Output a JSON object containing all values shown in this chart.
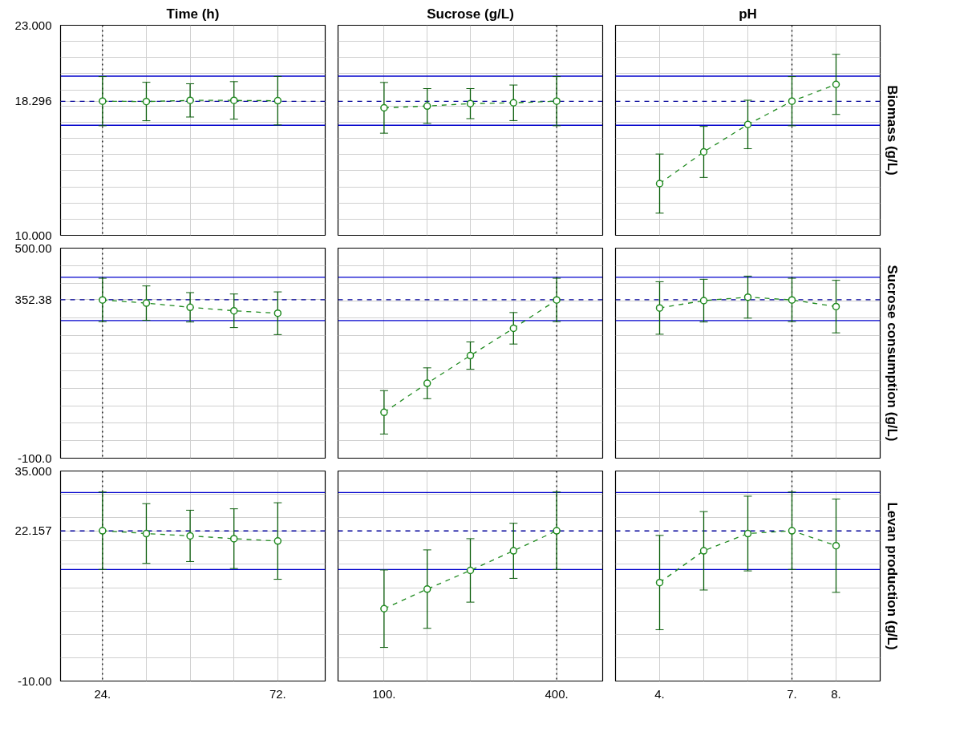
{
  "chart_data": [
    {
      "type": "line",
      "title": "Time (h)",
      "x": [
        24,
        36,
        48,
        60,
        72
      ],
      "xlim": [
        12.5,
        85
      ],
      "xticks": [
        {
          "value": 24,
          "label": null
        },
        {
          "value": 36,
          "label": null
        },
        {
          "value": 48,
          "label": null
        },
        {
          "value": 60,
          "label": null
        },
        {
          "value": 72,
          "label": null
        }
      ],
      "ylim": [
        10,
        23
      ],
      "yticks": [
        {
          "value": 10,
          "label": "10.000"
        },
        {
          "value": 11,
          "label": null
        },
        {
          "value": 12,
          "label": null
        },
        {
          "value": 13,
          "label": null
        },
        {
          "value": 14,
          "label": null
        },
        {
          "value": 15,
          "label": null
        },
        {
          "value": 16,
          "label": null
        },
        {
          "value": 17,
          "label": null
        },
        {
          "value": 18,
          "label": null
        },
        {
          "value": 18.296,
          "label": "18.296"
        },
        {
          "value": 19,
          "label": null
        },
        {
          "value": 20,
          "label": null
        },
        {
          "value": 21,
          "label": null
        },
        {
          "value": 22,
          "label": null
        },
        {
          "value": 23,
          "label": "23.000"
        }
      ],
      "tick_labels": "y",
      "grid": true,
      "marker": "circle",
      "line_style": "dashed",
      "series": [
        {
          "color": "#1f8a1f",
          "values": [
            18.3,
            18.28,
            18.35,
            18.35,
            18.33
          ],
          "errors": [
            1.52,
            1.19,
            1.03,
            1.16,
            1.5
          ]
        }
      ],
      "ref_lines": [
        {
          "axis": "y",
          "value": 19.85,
          "color": "#0000cc",
          "line_style": "solid"
        },
        {
          "axis": "y",
          "value": 18.296,
          "color": "#000099",
          "line_style": "dashed"
        },
        {
          "axis": "y",
          "value": 16.81,
          "color": "#0000cc",
          "line_style": "solid"
        },
        {
          "axis": "x",
          "value": 24,
          "color": "#000000",
          "line_style": "dotted"
        }
      ]
    },
    {
      "type": "line",
      "title": "Sucrose (g/L)",
      "x": [
        100,
        175,
        250,
        325,
        400
      ],
      "xlim": [
        20,
        480
      ],
      "xticks": [
        {
          "value": 100,
          "label": null
        },
        {
          "value": 175,
          "label": null
        },
        {
          "value": 250,
          "label": null
        },
        {
          "value": 325,
          "label": null
        },
        {
          "value": 400,
          "label": null
        }
      ],
      "ylim": [
        10,
        23
      ],
      "yticks": [
        {
          "value": 10,
          "label": null
        },
        {
          "value": 11,
          "label": null
        },
        {
          "value": 12,
          "label": null
        },
        {
          "value": 13,
          "label": null
        },
        {
          "value": 14,
          "label": null
        },
        {
          "value": 15,
          "label": null
        },
        {
          "value": 16,
          "label": null
        },
        {
          "value": 17,
          "label": null
        },
        {
          "value": 18,
          "label": null
        },
        {
          "value": 19,
          "label": null
        },
        {
          "value": 20,
          "label": null
        },
        {
          "value": 21,
          "label": null
        },
        {
          "value": 22,
          "label": null
        },
        {
          "value": 23,
          "label": null
        }
      ],
      "tick_labels": false,
      "grid": true,
      "marker": "circle",
      "line_style": "dashed",
      "series": [
        {
          "color": "#1f8a1f",
          "values": [
            17.89,
            18.0,
            18.15,
            18.2,
            18.3
          ],
          "errors": [
            1.57,
            1.08,
            0.93,
            1.1,
            1.52
          ]
        }
      ],
      "ref_lines": [
        {
          "axis": "y",
          "value": 19.85,
          "color": "#0000cc",
          "line_style": "solid"
        },
        {
          "axis": "y",
          "value": 18.296,
          "color": "#000099",
          "line_style": "dashed"
        },
        {
          "axis": "y",
          "value": 16.81,
          "color": "#0000cc",
          "line_style": "solid"
        },
        {
          "axis": "x",
          "value": 400,
          "color": "#000000",
          "line_style": "dotted"
        }
      ]
    },
    {
      "type": "line",
      "title": "pH",
      "ylabel": "Biomass (g/L)",
      "x": [
        4,
        5,
        6,
        7,
        8
      ],
      "xlim": [
        3,
        9
      ],
      "xticks": [
        {
          "value": 4,
          "label": null
        },
        {
          "value": 5,
          "label": null
        },
        {
          "value": 6,
          "label": null
        },
        {
          "value": 7,
          "label": null
        },
        {
          "value": 8,
          "label": null
        }
      ],
      "ylim": [
        10,
        23
      ],
      "yticks": [
        {
          "value": 10,
          "label": null
        },
        {
          "value": 11,
          "label": null
        },
        {
          "value": 12,
          "label": null
        },
        {
          "value": 13,
          "label": null
        },
        {
          "value": 14,
          "label": null
        },
        {
          "value": 15,
          "label": null
        },
        {
          "value": 16,
          "label": null
        },
        {
          "value": 17,
          "label": null
        },
        {
          "value": 18,
          "label": null
        },
        {
          "value": 19,
          "label": null
        },
        {
          "value": 20,
          "label": null
        },
        {
          "value": 21,
          "label": null
        },
        {
          "value": 22,
          "label": null
        },
        {
          "value": 23,
          "label": null
        }
      ],
      "tick_labels": false,
      "grid": true,
      "marker": "circle",
      "line_style": "dashed",
      "series": [
        {
          "color": "#1f8a1f",
          "values": [
            13.2,
            15.16,
            16.86,
            18.3,
            19.34
          ],
          "errors": [
            1.83,
            1.58,
            1.5,
            1.52,
            1.86
          ]
        }
      ],
      "ref_lines": [
        {
          "axis": "y",
          "value": 19.85,
          "color": "#0000cc",
          "line_style": "solid"
        },
        {
          "axis": "y",
          "value": 18.296,
          "color": "#000099",
          "line_style": "dashed"
        },
        {
          "axis": "y",
          "value": 16.81,
          "color": "#0000cc",
          "line_style": "solid"
        },
        {
          "axis": "x",
          "value": 7,
          "color": "#000000",
          "line_style": "dotted"
        }
      ]
    },
    {
      "type": "line",
      "x": [
        24,
        36,
        48,
        60,
        72
      ],
      "xlim": [
        12.5,
        85
      ],
      "xticks": [
        {
          "value": 24,
          "label": null
        },
        {
          "value": 36,
          "label": null
        },
        {
          "value": 48,
          "label": null
        },
        {
          "value": 60,
          "label": null
        },
        {
          "value": 72,
          "label": null
        }
      ],
      "ylim": [
        -100,
        500
      ],
      "yticks": [
        {
          "value": -100,
          "label": "-100.0"
        },
        {
          "value": -50,
          "label": null
        },
        {
          "value": 0,
          "label": null
        },
        {
          "value": 50,
          "label": null
        },
        {
          "value": 100,
          "label": null
        },
        {
          "value": 150,
          "label": null
        },
        {
          "value": 200,
          "label": null
        },
        {
          "value": 250,
          "label": null
        },
        {
          "value": 300,
          "label": null
        },
        {
          "value": 352.38,
          "label": "352.38"
        },
        {
          "value": 400,
          "label": null
        },
        {
          "value": 450,
          "label": null
        },
        {
          "value": 500,
          "label": "500.00"
        }
      ],
      "tick_labels": "y",
      "grid": true,
      "marker": "circle",
      "line_style": "dashed",
      "series": [
        {
          "color": "#1f8a1f",
          "values": [
            352,
            343,
            331,
            321,
            314
          ],
          "errors": [
            62,
            49,
            42,
            48,
            61
          ]
        }
      ],
      "ref_lines": [
        {
          "axis": "y",
          "value": 416.7,
          "color": "#0000cc",
          "line_style": "solid"
        },
        {
          "axis": "y",
          "value": 352.38,
          "color": "#000099",
          "line_style": "dashed"
        },
        {
          "axis": "y",
          "value": 292.9,
          "color": "#0000cc",
          "line_style": "solid"
        },
        {
          "axis": "x",
          "value": 24,
          "color": "#000000",
          "line_style": "dotted"
        }
      ]
    },
    {
      "type": "line",
      "x": [
        100,
        175,
        250,
        325,
        400
      ],
      "xlim": [
        20,
        480
      ],
      "xticks": [
        {
          "value": 100,
          "label": null
        },
        {
          "value": 175,
          "label": null
        },
        {
          "value": 250,
          "label": null
        },
        {
          "value": 325,
          "label": null
        },
        {
          "value": 400,
          "label": null
        }
      ],
      "ylim": [
        -100,
        500
      ],
      "yticks": [
        {
          "value": -100,
          "label": null
        },
        {
          "value": -50,
          "label": null
        },
        {
          "value": 0,
          "label": null
        },
        {
          "value": 50,
          "label": null
        },
        {
          "value": 100,
          "label": null
        },
        {
          "value": 150,
          "label": null
        },
        {
          "value": 200,
          "label": null
        },
        {
          "value": 250,
          "label": null
        },
        {
          "value": 300,
          "label": null
        },
        {
          "value": 350,
          "label": null
        },
        {
          "value": 400,
          "label": null
        },
        {
          "value": 450,
          "label": null
        },
        {
          "value": 500,
          "label": null
        }
      ],
      "tick_labels": false,
      "grid": true,
      "marker": "circle",
      "line_style": "dashed",
      "series": [
        {
          "color": "#1f8a1f",
          "values": [
            31,
            114,
            193,
            271,
            352
          ],
          "errors": [
            62,
            44,
            39,
            45,
            62
          ]
        }
      ],
      "ref_lines": [
        {
          "axis": "y",
          "value": 416.7,
          "color": "#0000cc",
          "line_style": "solid"
        },
        {
          "axis": "y",
          "value": 352.38,
          "color": "#000099",
          "line_style": "dashed"
        },
        {
          "axis": "y",
          "value": 292.9,
          "color": "#0000cc",
          "line_style": "solid"
        },
        {
          "axis": "x",
          "value": 400,
          "color": "#000000",
          "line_style": "dotted"
        }
      ]
    },
    {
      "type": "line",
      "ylabel": "Sucrose consumption (g/L)",
      "x": [
        4,
        5,
        6,
        7,
        8
      ],
      "xlim": [
        3,
        9
      ],
      "xticks": [
        {
          "value": 4,
          "label": null
        },
        {
          "value": 5,
          "label": null
        },
        {
          "value": 6,
          "label": null
        },
        {
          "value": 7,
          "label": null
        },
        {
          "value": 8,
          "label": null
        }
      ],
      "ylim": [
        -100,
        500
      ],
      "yticks": [
        {
          "value": -100,
          "label": null
        },
        {
          "value": -50,
          "label": null
        },
        {
          "value": 0,
          "label": null
        },
        {
          "value": 50,
          "label": null
        },
        {
          "value": 100,
          "label": null
        },
        {
          "value": 150,
          "label": null
        },
        {
          "value": 200,
          "label": null
        },
        {
          "value": 250,
          "label": null
        },
        {
          "value": 300,
          "label": null
        },
        {
          "value": 350,
          "label": null
        },
        {
          "value": 400,
          "label": null
        },
        {
          "value": 450,
          "label": null
        },
        {
          "value": 500,
          "label": null
        }
      ],
      "tick_labels": false,
      "grid": true,
      "marker": "circle",
      "line_style": "dashed",
      "series": [
        {
          "color": "#1f8a1f",
          "values": [
            329,
            350,
            360,
            352,
            333
          ],
          "errors": [
            75,
            61,
            60,
            62,
            75
          ]
        }
      ],
      "ref_lines": [
        {
          "axis": "y",
          "value": 416.7,
          "color": "#0000cc",
          "line_style": "solid"
        },
        {
          "axis": "y",
          "value": 352.38,
          "color": "#000099",
          "line_style": "dashed"
        },
        {
          "axis": "y",
          "value": 292.9,
          "color": "#0000cc",
          "line_style": "solid"
        },
        {
          "axis": "x",
          "value": 7,
          "color": "#000000",
          "line_style": "dotted"
        }
      ]
    },
    {
      "type": "line",
      "x": [
        24,
        36,
        48,
        60,
        72
      ],
      "xlim": [
        12.5,
        85
      ],
      "xticks": [
        {
          "value": 24,
          "label": "24."
        },
        {
          "value": 36,
          "label": null
        },
        {
          "value": 48,
          "label": null
        },
        {
          "value": 60,
          "label": null
        },
        {
          "value": 72,
          "label": "72."
        }
      ],
      "ylim": [
        -10,
        35
      ],
      "yticks": [
        {
          "value": -10,
          "label": "-10.00"
        },
        {
          "value": -5,
          "label": null
        },
        {
          "value": 0,
          "label": null
        },
        {
          "value": 5,
          "label": null
        },
        {
          "value": 10,
          "label": null
        },
        {
          "value": 15,
          "label": null
        },
        {
          "value": 20,
          "label": null
        },
        {
          "value": 22.157,
          "label": "22.157"
        },
        {
          "value": 25,
          "label": null
        },
        {
          "value": 30,
          "label": null
        },
        {
          "value": 35,
          "label": "35.000"
        }
      ],
      "grid": true,
      "marker": "circle",
      "line_style": "dashed",
      "series": [
        {
          "color": "#1f8a1f",
          "values": [
            22.2,
            21.6,
            21.1,
            20.5,
            20.0
          ],
          "errors": [
            8.3,
            6.4,
            5.5,
            6.4,
            8.2
          ]
        }
      ],
      "ref_lines": [
        {
          "axis": "y",
          "value": 30.4,
          "color": "#0000cc",
          "line_style": "solid"
        },
        {
          "axis": "y",
          "value": 22.157,
          "color": "#000099",
          "line_style": "dashed"
        },
        {
          "axis": "y",
          "value": 13.9,
          "color": "#0000cc",
          "line_style": "solid"
        },
        {
          "axis": "x",
          "value": 24,
          "color": "#000000",
          "line_style": "dotted"
        }
      ]
    },
    {
      "type": "line",
      "x": [
        100,
        175,
        250,
        325,
        400
      ],
      "xlim": [
        20,
        480
      ],
      "xticks": [
        {
          "value": 100,
          "label": "100."
        },
        {
          "value": 175,
          "label": null
        },
        {
          "value": 250,
          "label": null
        },
        {
          "value": 325,
          "label": null
        },
        {
          "value": 400,
          "label": "400."
        }
      ],
      "ylim": [
        -10,
        35
      ],
      "yticks": [
        {
          "value": -10,
          "label": null
        },
        {
          "value": -5,
          "label": null
        },
        {
          "value": 0,
          "label": null
        },
        {
          "value": 5,
          "label": null
        },
        {
          "value": 10,
          "label": null
        },
        {
          "value": 15,
          "label": null
        },
        {
          "value": 20,
          "label": null
        },
        {
          "value": 25,
          "label": null
        },
        {
          "value": 30,
          "label": null
        },
        {
          "value": 35,
          "label": null
        }
      ],
      "tick_labels": "x",
      "grid": true,
      "marker": "circle",
      "line_style": "dashed",
      "series": [
        {
          "color": "#1f8a1f",
          "values": [
            5.5,
            9.7,
            13.7,
            17.9,
            22.2
          ],
          "errors": [
            8.3,
            8.4,
            6.8,
            5.9,
            8.3
          ]
        }
      ],
      "ref_lines": [
        {
          "axis": "y",
          "value": 30.4,
          "color": "#0000cc",
          "line_style": "solid"
        },
        {
          "axis": "y",
          "value": 22.157,
          "color": "#000099",
          "line_style": "dashed"
        },
        {
          "axis": "y",
          "value": 13.9,
          "color": "#0000cc",
          "line_style": "solid"
        },
        {
          "axis": "x",
          "value": 400,
          "color": "#000000",
          "line_style": "dotted"
        }
      ]
    },
    {
      "type": "line",
      "ylabel": "Levan production (g/L)",
      "x": [
        4,
        5,
        6,
        7,
        8
      ],
      "xlim": [
        3,
        9
      ],
      "xticks": [
        {
          "value": 4,
          "label": "4."
        },
        {
          "value": 5,
          "label": null
        },
        {
          "value": 6,
          "label": null
        },
        {
          "value": 7,
          "label": "7."
        },
        {
          "value": 8,
          "label": "8."
        }
      ],
      "ylim": [
        -10,
        35
      ],
      "yticks": [
        {
          "value": -10,
          "label": null
        },
        {
          "value": -5,
          "label": null
        },
        {
          "value": 0,
          "label": null
        },
        {
          "value": 5,
          "label": null
        },
        {
          "value": 10,
          "label": null
        },
        {
          "value": 15,
          "label": null
        },
        {
          "value": 20,
          "label": null
        },
        {
          "value": 25,
          "label": null
        },
        {
          "value": 30,
          "label": null
        },
        {
          "value": 35,
          "label": null
        }
      ],
      "tick_labels": "x",
      "grid": true,
      "marker": "circle",
      "line_style": "dashed",
      "series": [
        {
          "color": "#1f8a1f",
          "values": [
            11.1,
            17.9,
            21.6,
            22.2,
            19.0
          ],
          "errors": [
            10.1,
            8.4,
            8.0,
            8.3,
            10.0
          ]
        }
      ],
      "ref_lines": [
        {
          "axis": "y",
          "value": 30.4,
          "color": "#0000cc",
          "line_style": "solid"
        },
        {
          "axis": "y",
          "value": 22.157,
          "color": "#000099",
          "line_style": "dashed"
        },
        {
          "axis": "y",
          "value": 13.9,
          "color": "#0000cc",
          "line_style": "solid"
        },
        {
          "axis": "x",
          "value": 7,
          "color": "#000000",
          "line_style": "dotted"
        }
      ]
    }
  ]
}
